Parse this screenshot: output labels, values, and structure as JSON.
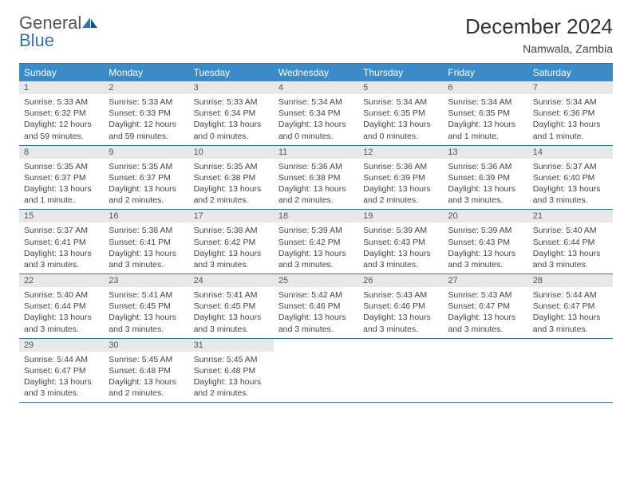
{
  "brand": {
    "name_gray": "General",
    "name_blue": "Blue"
  },
  "title": "December 2024",
  "location": "Namwala, Zambia",
  "colors": {
    "header_bg": "#3b8bc9",
    "border": "#2e75b6",
    "daynum_bg": "#e8e8e8",
    "text": "#333333"
  },
  "weekdays": [
    "Sunday",
    "Monday",
    "Tuesday",
    "Wednesday",
    "Thursday",
    "Friday",
    "Saturday"
  ],
  "weeks": [
    [
      {
        "n": "1",
        "sr": "5:33 AM",
        "ss": "6:32 PM",
        "dl": "12 hours and 59 minutes."
      },
      {
        "n": "2",
        "sr": "5:33 AM",
        "ss": "6:33 PM",
        "dl": "12 hours and 59 minutes."
      },
      {
        "n": "3",
        "sr": "5:33 AM",
        "ss": "6:34 PM",
        "dl": "13 hours and 0 minutes."
      },
      {
        "n": "4",
        "sr": "5:34 AM",
        "ss": "6:34 PM",
        "dl": "13 hours and 0 minutes."
      },
      {
        "n": "5",
        "sr": "5:34 AM",
        "ss": "6:35 PM",
        "dl": "13 hours and 0 minutes."
      },
      {
        "n": "6",
        "sr": "5:34 AM",
        "ss": "6:35 PM",
        "dl": "13 hours and 1 minute."
      },
      {
        "n": "7",
        "sr": "5:34 AM",
        "ss": "6:36 PM",
        "dl": "13 hours and 1 minute."
      }
    ],
    [
      {
        "n": "8",
        "sr": "5:35 AM",
        "ss": "6:37 PM",
        "dl": "13 hours and 1 minute."
      },
      {
        "n": "9",
        "sr": "5:35 AM",
        "ss": "6:37 PM",
        "dl": "13 hours and 2 minutes."
      },
      {
        "n": "10",
        "sr": "5:35 AM",
        "ss": "6:38 PM",
        "dl": "13 hours and 2 minutes."
      },
      {
        "n": "11",
        "sr": "5:36 AM",
        "ss": "6:38 PM",
        "dl": "13 hours and 2 minutes."
      },
      {
        "n": "12",
        "sr": "5:36 AM",
        "ss": "6:39 PM",
        "dl": "13 hours and 2 minutes."
      },
      {
        "n": "13",
        "sr": "5:36 AM",
        "ss": "6:39 PM",
        "dl": "13 hours and 3 minutes."
      },
      {
        "n": "14",
        "sr": "5:37 AM",
        "ss": "6:40 PM",
        "dl": "13 hours and 3 minutes."
      }
    ],
    [
      {
        "n": "15",
        "sr": "5:37 AM",
        "ss": "6:41 PM",
        "dl": "13 hours and 3 minutes."
      },
      {
        "n": "16",
        "sr": "5:38 AM",
        "ss": "6:41 PM",
        "dl": "13 hours and 3 minutes."
      },
      {
        "n": "17",
        "sr": "5:38 AM",
        "ss": "6:42 PM",
        "dl": "13 hours and 3 minutes."
      },
      {
        "n": "18",
        "sr": "5:39 AM",
        "ss": "6:42 PM",
        "dl": "13 hours and 3 minutes."
      },
      {
        "n": "19",
        "sr": "5:39 AM",
        "ss": "6:43 PM",
        "dl": "13 hours and 3 minutes."
      },
      {
        "n": "20",
        "sr": "5:39 AM",
        "ss": "6:43 PM",
        "dl": "13 hours and 3 minutes."
      },
      {
        "n": "21",
        "sr": "5:40 AM",
        "ss": "6:44 PM",
        "dl": "13 hours and 3 minutes."
      }
    ],
    [
      {
        "n": "22",
        "sr": "5:40 AM",
        "ss": "6:44 PM",
        "dl": "13 hours and 3 minutes."
      },
      {
        "n": "23",
        "sr": "5:41 AM",
        "ss": "6:45 PM",
        "dl": "13 hours and 3 minutes."
      },
      {
        "n": "24",
        "sr": "5:41 AM",
        "ss": "6:45 PM",
        "dl": "13 hours and 3 minutes."
      },
      {
        "n": "25",
        "sr": "5:42 AM",
        "ss": "6:46 PM",
        "dl": "13 hours and 3 minutes."
      },
      {
        "n": "26",
        "sr": "5:43 AM",
        "ss": "6:46 PM",
        "dl": "13 hours and 3 minutes."
      },
      {
        "n": "27",
        "sr": "5:43 AM",
        "ss": "6:47 PM",
        "dl": "13 hours and 3 minutes."
      },
      {
        "n": "28",
        "sr": "5:44 AM",
        "ss": "6:47 PM",
        "dl": "13 hours and 3 minutes."
      }
    ],
    [
      {
        "n": "29",
        "sr": "5:44 AM",
        "ss": "6:47 PM",
        "dl": "13 hours and 3 minutes."
      },
      {
        "n": "30",
        "sr": "5:45 AM",
        "ss": "6:48 PM",
        "dl": "13 hours and 2 minutes."
      },
      {
        "n": "31",
        "sr": "5:45 AM",
        "ss": "6:48 PM",
        "dl": "13 hours and 2 minutes."
      },
      null,
      null,
      null,
      null
    ]
  ],
  "labels": {
    "sunrise": "Sunrise:",
    "sunset": "Sunset:",
    "daylight": "Daylight:"
  }
}
